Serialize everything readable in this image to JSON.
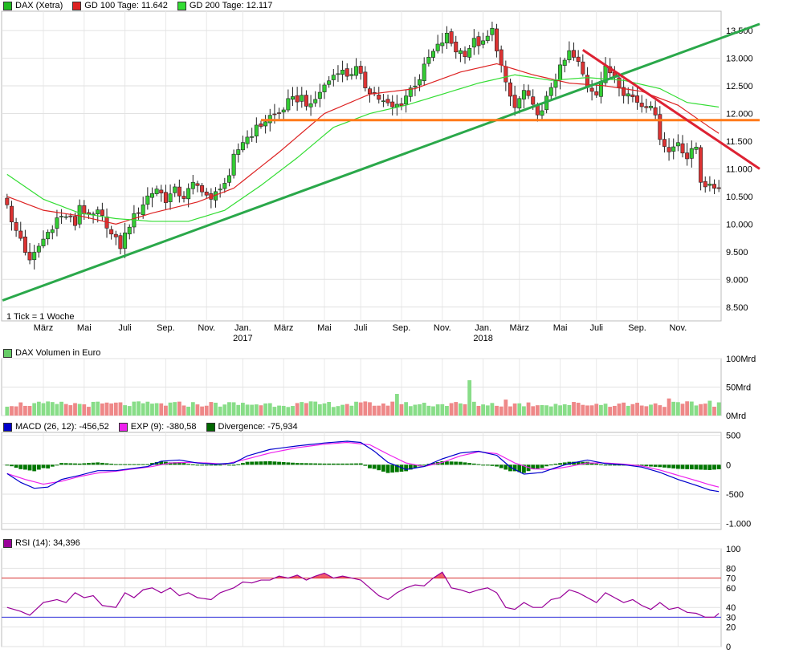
{
  "legends": {
    "price": [
      {
        "label": "DAX (Xetra)",
        "color": "#22bb22"
      },
      {
        "label": "GD 100 Tage: 11.642",
        "color": "#dd2222"
      },
      {
        "label": "GD 200 Tage: 12.117",
        "color": "#33dd33"
      }
    ],
    "volume": [
      {
        "label": "DAX Volumen in Euro",
        "color": "#66cc66"
      }
    ],
    "macd": [
      {
        "label": "MACD (26, 12): -456,52",
        "color": "#0000cc"
      },
      {
        "label": "EXP (9): -380,58",
        "color": "#ee22ee"
      },
      {
        "label": "Divergence: -75,934",
        "color": "#006600"
      }
    ],
    "rsi": [
      {
        "label": "RSI (14): 34,396",
        "color": "#990099"
      }
    ]
  },
  "tick_note": "1 Tick = 1 Woche",
  "chart_data": [
    {
      "type": "candlestick",
      "name": "price",
      "ylim": [
        8250,
        13850
      ],
      "yticks": [
        8500,
        9000,
        9500,
        10000,
        10500,
        11000,
        11500,
        12000,
        12500,
        13000,
        13500
      ],
      "ytick_labels": [
        "8.500",
        "9.000",
        "9.500",
        "10.000",
        "10.500",
        "11.000",
        "11.500",
        "12.000",
        "12.500",
        "13.000",
        "13.500"
      ],
      "xticks": [
        {
          "label": "März",
          "x": 8
        },
        {
          "label": "Mai",
          "x": 17
        },
        {
          "label": "Juli",
          "x": 26
        },
        {
          "label": "Sep.",
          "x": 35
        },
        {
          "label": "Nov.",
          "x": 44
        },
        {
          "label": "Jan.",
          "x": 52,
          "year": "2017"
        },
        {
          "label": "März",
          "x": 61
        },
        {
          "label": "Mai",
          "x": 70
        },
        {
          "label": "Juli",
          "x": 78
        },
        {
          "label": "Sep.",
          "x": 87
        },
        {
          "label": "Nov.",
          "x": 96
        },
        {
          "label": "Jan.",
          "x": 105,
          "year": "2018"
        },
        {
          "label": "März",
          "x": 113
        },
        {
          "label": "Mai",
          "x": 122
        },
        {
          "label": "Juli",
          "x": 130
        },
        {
          "label": "Sep.",
          "x": 139
        },
        {
          "label": "Nov.",
          "x": 148
        }
      ],
      "n_weeks": 158,
      "anchors_close": [
        [
          0,
          10400
        ],
        [
          1,
          10000
        ],
        [
          3,
          9750
        ],
        [
          5,
          9300
        ],
        [
          7,
          9600
        ],
        [
          9,
          9850
        ],
        [
          11,
          10100
        ],
        [
          13,
          10150
        ],
        [
          15,
          10000
        ],
        [
          16,
          10350
        ],
        [
          18,
          10100
        ],
        [
          20,
          10200
        ],
        [
          22,
          10000
        ],
        [
          23,
          9800
        ],
        [
          25,
          9600
        ],
        [
          27,
          10000
        ],
        [
          29,
          10250
        ],
        [
          31,
          10500
        ],
        [
          33,
          10650
        ],
        [
          35,
          10450
        ],
        [
          37,
          10600
        ],
        [
          39,
          10500
        ],
        [
          41,
          10700
        ],
        [
          43,
          10650
        ],
        [
          45,
          10400
        ],
        [
          47,
          10700
        ],
        [
          49,
          10800
        ],
        [
          50,
          11200
        ],
        [
          52,
          11500
        ],
        [
          54,
          11650
        ],
        [
          56,
          11800
        ],
        [
          58,
          11950
        ],
        [
          60,
          12000
        ],
        [
          62,
          12200
        ],
        [
          65,
          12300
        ],
        [
          67,
          12100
        ],
        [
          69,
          12400
        ],
        [
          71,
          12600
        ],
        [
          73,
          12800
        ],
        [
          75,
          12700
        ],
        [
          77,
          12800
        ],
        [
          79,
          12500
        ],
        [
          81,
          12350
        ],
        [
          83,
          12200
        ],
        [
          85,
          12100
        ],
        [
          87,
          12200
        ],
        [
          89,
          12450
        ],
        [
          91,
          12650
        ],
        [
          93,
          13000
        ],
        [
          95,
          13200
        ],
        [
          97,
          13400
        ],
        [
          99,
          13150
        ],
        [
          101,
          13100
        ],
        [
          103,
          13300
        ],
        [
          105,
          13250
        ],
        [
          107,
          13500
        ],
        [
          108,
          13200
        ],
        [
          110,
          12500
        ],
        [
          112,
          12100
        ],
        [
          114,
          12400
        ],
        [
          116,
          12100
        ],
        [
          118,
          12000
        ],
        [
          120,
          12500
        ],
        [
          122,
          12800
        ],
        [
          124,
          13100
        ],
        [
          126,
          12900
        ],
        [
          128,
          12500
        ],
        [
          130,
          12400
        ],
        [
          132,
          12800
        ],
        [
          134,
          12700
        ],
        [
          136,
          12400
        ],
        [
          138,
          12300
        ],
        [
          140,
          12150
        ],
        [
          142,
          12200
        ],
        [
          144,
          11600
        ],
        [
          146,
          11300
        ],
        [
          148,
          11500
        ],
        [
          150,
          11200
        ],
        [
          152,
          11400
        ],
        [
          153,
          10800
        ],
        [
          155,
          10650
        ],
        [
          157,
          10700
        ]
      ],
      "ma100_anchors": [
        [
          0,
          10500
        ],
        [
          8,
          10250
        ],
        [
          16,
          10150
        ],
        [
          24,
          10000
        ],
        [
          32,
          10200
        ],
        [
          42,
          10400
        ],
        [
          50,
          10650
        ],
        [
          60,
          11300
        ],
        [
          70,
          12000
        ],
        [
          80,
          12350
        ],
        [
          90,
          12450
        ],
        [
          100,
          12750
        ],
        [
          108,
          12900
        ],
        [
          116,
          12700
        ],
        [
          124,
          12550
        ],
        [
          132,
          12500
        ],
        [
          140,
          12400
        ],
        [
          148,
          12150
        ],
        [
          155,
          11750
        ],
        [
          157,
          11642
        ]
      ],
      "ma200_anchors": [
        [
          0,
          10900
        ],
        [
          8,
          10450
        ],
        [
          16,
          10200
        ],
        [
          24,
          10100
        ],
        [
          32,
          10050
        ],
        [
          40,
          10050
        ],
        [
          48,
          10250
        ],
        [
          56,
          10700
        ],
        [
          64,
          11200
        ],
        [
          72,
          11750
        ],
        [
          80,
          12000
        ],
        [
          88,
          12150
        ],
        [
          96,
          12350
        ],
        [
          104,
          12550
        ],
        [
          112,
          12700
        ],
        [
          120,
          12600
        ],
        [
          128,
          12650
        ],
        [
          136,
          12600
        ],
        [
          144,
          12450
        ],
        [
          150,
          12200
        ],
        [
          157,
          12117
        ]
      ],
      "trend_lines": [
        {
          "color": "#2aa84a",
          "from": [
            -1,
            8620
          ],
          "to": [
            166,
            13620
          ]
        },
        {
          "color": "#ff7a1a",
          "from": [
            56,
            11880
          ],
          "to": [
            166,
            11880
          ]
        },
        {
          "color": "#dd2233",
          "from": [
            127,
            13150
          ],
          "to": [
            166,
            11000
          ]
        }
      ]
    },
    {
      "type": "bar",
      "name": "volume",
      "ylim": [
        0,
        100
      ],
      "yticks": [
        0,
        50,
        100
      ],
      "ytick_labels": [
        "0Mrd",
        "50Mrd",
        "100Mrd"
      ],
      "base_volume": 20,
      "spikes": [
        [
          86,
          38
        ],
        [
          102,
          62
        ],
        [
          110,
          28
        ],
        [
          146,
          30
        ],
        [
          155,
          26
        ]
      ]
    },
    {
      "type": "line",
      "name": "macd",
      "ylim": [
        -1100,
        550
      ],
      "yticks": [
        -1000,
        -500,
        0,
        500
      ],
      "ytick_labels": [
        "-1.000",
        "-500",
        "0",
        "500"
      ],
      "macd_anchors": [
        [
          0,
          -150
        ],
        [
          3,
          -300
        ],
        [
          6,
          -400
        ],
        [
          9,
          -380
        ],
        [
          12,
          -250
        ],
        [
          16,
          -180
        ],
        [
          20,
          -100
        ],
        [
          24,
          -100
        ],
        [
          28,
          -60
        ],
        [
          31,
          -30
        ],
        [
          34,
          60
        ],
        [
          38,
          80
        ],
        [
          42,
          30
        ],
        [
          46,
          10
        ],
        [
          50,
          30
        ],
        [
          53,
          150
        ],
        [
          58,
          260
        ],
        [
          64,
          320
        ],
        [
          70,
          370
        ],
        [
          75,
          400
        ],
        [
          78,
          380
        ],
        [
          81,
          230
        ],
        [
          84,
          40
        ],
        [
          88,
          -80
        ],
        [
          92,
          -30
        ],
        [
          96,
          100
        ],
        [
          100,
          200
        ],
        [
          104,
          230
        ],
        [
          108,
          160
        ],
        [
          111,
          -40
        ],
        [
          114,
          -160
        ],
        [
          118,
          -130
        ],
        [
          121,
          -50
        ],
        [
          124,
          20
        ],
        [
          128,
          80
        ],
        [
          132,
          20
        ],
        [
          136,
          0
        ],
        [
          140,
          -40
        ],
        [
          144,
          -130
        ],
        [
          148,
          -250
        ],
        [
          152,
          -350
        ],
        [
          155,
          -430
        ],
        [
          157,
          -456
        ]
      ],
      "exp_anchors": [
        [
          0,
          -150
        ],
        [
          4,
          -250
        ],
        [
          8,
          -330
        ],
        [
          12,
          -280
        ],
        [
          16,
          -200
        ],
        [
          20,
          -140
        ],
        [
          24,
          -110
        ],
        [
          28,
          -70
        ],
        [
          32,
          -30
        ],
        [
          36,
          30
        ],
        [
          40,
          40
        ],
        [
          44,
          30
        ],
        [
          48,
          10
        ],
        [
          52,
          80
        ],
        [
          58,
          200
        ],
        [
          64,
          290
        ],
        [
          70,
          350
        ],
        [
          75,
          380
        ],
        [
          80,
          340
        ],
        [
          84,
          180
        ],
        [
          88,
          30
        ],
        [
          92,
          -30
        ],
        [
          96,
          40
        ],
        [
          100,
          150
        ],
        [
          104,
          220
        ],
        [
          108,
          190
        ],
        [
          112,
          30
        ],
        [
          116,
          -70
        ],
        [
          120,
          -80
        ],
        [
          124,
          -30
        ],
        [
          128,
          30
        ],
        [
          132,
          30
        ],
        [
          136,
          10
        ],
        [
          140,
          -20
        ],
        [
          144,
          -90
        ],
        [
          148,
          -180
        ],
        [
          152,
          -270
        ],
        [
          155,
          -340
        ],
        [
          157,
          -380
        ]
      ]
    },
    {
      "type": "line",
      "name": "rsi",
      "ylim": [
        0,
        100
      ],
      "yticks": [
        0,
        20,
        30,
        40,
        60,
        70,
        80,
        100
      ],
      "ytick_labels": [
        "0",
        "20",
        "30",
        "40",
        "60",
        "70",
        "80",
        "100"
      ],
      "upper": 70,
      "lower": 30,
      "rsi_anchors": [
        [
          0,
          40
        ],
        [
          3,
          36
        ],
        [
          5,
          32
        ],
        [
          8,
          45
        ],
        [
          11,
          48
        ],
        [
          13,
          45
        ],
        [
          15,
          55
        ],
        [
          17,
          50
        ],
        [
          19,
          52
        ],
        [
          21,
          42
        ],
        [
          24,
          40
        ],
        [
          26,
          55
        ],
        [
          28,
          50
        ],
        [
          30,
          58
        ],
        [
          32,
          60
        ],
        [
          34,
          55
        ],
        [
          36,
          60
        ],
        [
          38,
          52
        ],
        [
          40,
          55
        ],
        [
          42,
          50
        ],
        [
          45,
          48
        ],
        [
          47,
          55
        ],
        [
          50,
          60
        ],
        [
          52,
          66
        ],
        [
          54,
          65
        ],
        [
          56,
          68
        ],
        [
          58,
          68
        ],
        [
          60,
          72
        ],
        [
          62,
          70
        ],
        [
          64,
          73
        ],
        [
          66,
          68
        ],
        [
          68,
          72
        ],
        [
          70,
          75
        ],
        [
          72,
          70
        ],
        [
          74,
          72
        ],
        [
          76,
          70
        ],
        [
          78,
          68
        ],
        [
          80,
          60
        ],
        [
          82,
          52
        ],
        [
          84,
          48
        ],
        [
          86,
          55
        ],
        [
          88,
          60
        ],
        [
          90,
          63
        ],
        [
          92,
          62
        ],
        [
          94,
          70
        ],
        [
          96,
          76
        ],
        [
          98,
          60
        ],
        [
          100,
          58
        ],
        [
          102,
          55
        ],
        [
          104,
          58
        ],
        [
          106,
          60
        ],
        [
          108,
          55
        ],
        [
          110,
          40
        ],
        [
          112,
          38
        ],
        [
          114,
          45
        ],
        [
          116,
          40
        ],
        [
          118,
          40
        ],
        [
          120,
          48
        ],
        [
          122,
          50
        ],
        [
          124,
          58
        ],
        [
          126,
          55
        ],
        [
          128,
          50
        ],
        [
          130,
          45
        ],
        [
          132,
          55
        ],
        [
          134,
          50
        ],
        [
          136,
          45
        ],
        [
          138,
          48
        ],
        [
          140,
          42
        ],
        [
          142,
          38
        ],
        [
          144,
          45
        ],
        [
          146,
          38
        ],
        [
          148,
          40
        ],
        [
          150,
          35
        ],
        [
          152,
          34
        ],
        [
          154,
          30
        ],
        [
          156,
          30
        ],
        [
          157,
          34
        ]
      ]
    }
  ]
}
